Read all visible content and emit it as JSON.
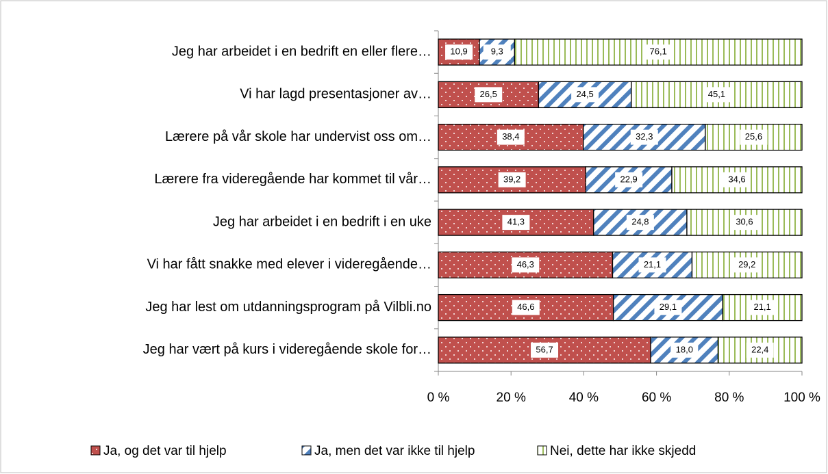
{
  "chart_data": {
    "type": "bar",
    "orientation": "horizontal",
    "stack": "percent",
    "categories": [
      "Jeg har arbeidet i en bedrift en eller flere…",
      "Vi har lagd presentasjoner av…",
      "Lærere på vår skole har undervist oss om…",
      "Lærere fra videregående har kommet til vår…",
      "Jeg har arbeidet i en bedrift i en uke",
      "Vi har fått snakke med elever i videregående…",
      "Jeg har lest om utdanningsprogram på Vilbli.no",
      "Jeg har vært på kurs i videregående skole for…"
    ],
    "series": [
      {
        "name": "Ja, og det var til hjelp",
        "color": "#c0504d",
        "pattern": "dots",
        "values": [
          10.9,
          26.5,
          38.4,
          39.2,
          41.3,
          46.3,
          46.6,
          56.7
        ],
        "value_labels": [
          "10,9",
          "26,5",
          "38,4",
          "39,2",
          "41,3",
          "46,3",
          "46,6",
          "56,7"
        ]
      },
      {
        "name": "Ja, men det var ikke til hjelp",
        "color": "#4f81bd",
        "pattern": "diagonal",
        "values": [
          9.3,
          24.5,
          32.3,
          22.9,
          24.8,
          21.1,
          29.1,
          18.0
        ],
        "value_labels": [
          "9,3",
          "24,5",
          "32,3",
          "22,9",
          "24,8",
          "21,1",
          "29,1",
          "18,0"
        ]
      },
      {
        "name": "Nei, dette har ikke skjedd",
        "color": "#9bbb59",
        "pattern": "vertical",
        "values": [
          76.1,
          45.1,
          25.6,
          34.6,
          30.6,
          29.2,
          21.1,
          22.4
        ],
        "value_labels": [
          "76,1",
          "45,1",
          "25,6",
          "34,6",
          "30,6",
          "29,2",
          "21,1",
          "22,4"
        ]
      }
    ],
    "xlim": [
      0,
      100
    ],
    "xticks": [
      {
        "value": 0,
        "label": "0 %"
      },
      {
        "value": 20,
        "label": "20 %"
      },
      {
        "value": 40,
        "label": "40 %"
      },
      {
        "value": 60,
        "label": "60 %"
      },
      {
        "value": 80,
        "label": "80 %"
      },
      {
        "value": 100,
        "label": "100 %"
      }
    ],
    "legend": "bottom"
  }
}
